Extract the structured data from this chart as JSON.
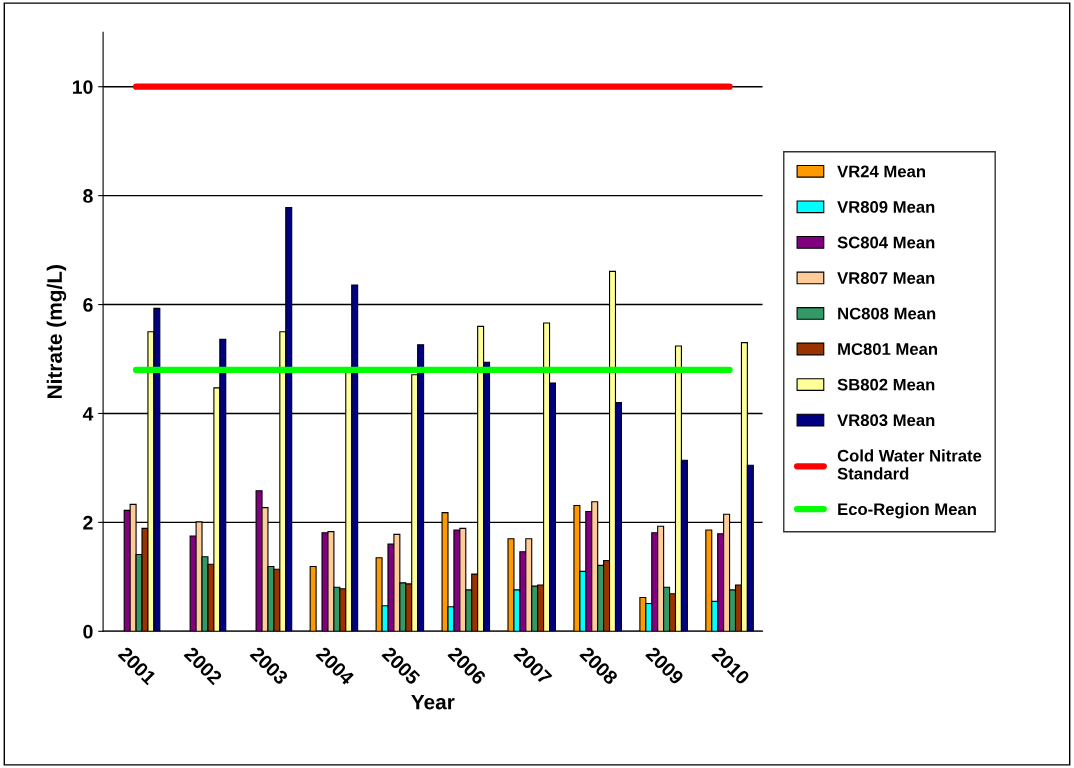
{
  "chart_data": {
    "type": "bar",
    "xlabel": "Year",
    "ylabel": "Nitrate (mg/L)",
    "categories": [
      "2001",
      "2002",
      "2003",
      "2004",
      "2005",
      "2006",
      "2007",
      "2008",
      "2009",
      "2010"
    ],
    "series": [
      {
        "name": "VR24 Mean",
        "color": "#ff9900",
        "values": [
          null,
          null,
          null,
          1.19,
          1.35,
          2.18,
          1.7,
          2.31,
          0.62,
          1.86
        ]
      },
      {
        "name": "VR809 Mean",
        "color": "#00ffff",
        "values": [
          null,
          null,
          null,
          null,
          0.47,
          0.45,
          0.76,
          1.1,
          0.51,
          0.55
        ]
      },
      {
        "name": "SC804 Mean",
        "color": "#800080",
        "values": [
          2.22,
          1.75,
          2.58,
          1.81,
          1.6,
          1.86,
          1.46,
          2.2,
          1.81,
          1.79
        ]
      },
      {
        "name": "VR807 Mean",
        "color": "#ffcc99",
        "values": [
          2.33,
          2.01,
          2.27,
          1.83,
          1.78,
          1.89,
          1.7,
          2.38,
          1.93,
          2.15
        ]
      },
      {
        "name": "NC808 Mean",
        "color": "#339966",
        "values": [
          1.41,
          1.37,
          1.19,
          0.81,
          0.89,
          0.76,
          0.83,
          1.21,
          0.81,
          0.76
        ]
      },
      {
        "name": "MC801 Mean",
        "color": "#993300",
        "values": [
          1.89,
          1.23,
          1.14,
          0.78,
          0.87,
          1.05,
          0.85,
          1.3,
          0.69,
          0.85
        ]
      },
      {
        "name": "SB802 Mean",
        "color": "#ffff99",
        "values": [
          5.5,
          4.47,
          5.5,
          4.81,
          4.71,
          5.6,
          5.66,
          6.61,
          5.24,
          5.3
        ]
      },
      {
        "name": "VR803 Mean",
        "color": "#000080",
        "values": [
          5.93,
          5.36,
          7.78,
          6.36,
          5.26,
          4.94,
          4.56,
          4.2,
          3.14,
          3.05
        ]
      },
      {
        "name": "Cold Water Nitrate Standard",
        "type": "line",
        "color": "#ff0000",
        "values": [
          10,
          10,
          10,
          10,
          10,
          10,
          10,
          10,
          10,
          10
        ]
      },
      {
        "name": "Eco-Region Mean",
        "type": "line",
        "color": "#00ff00",
        "values": [
          4.8,
          4.8,
          4.8,
          4.8,
          4.8,
          4.8,
          4.8,
          4.8,
          4.8,
          4.8
        ]
      }
    ],
    "ylim": [
      0,
      11
    ],
    "yticks": [
      0,
      2,
      4,
      6,
      8,
      10
    ],
    "grid": "y",
    "legend": "right",
    "marker": "none",
    "line_style": "solid"
  }
}
